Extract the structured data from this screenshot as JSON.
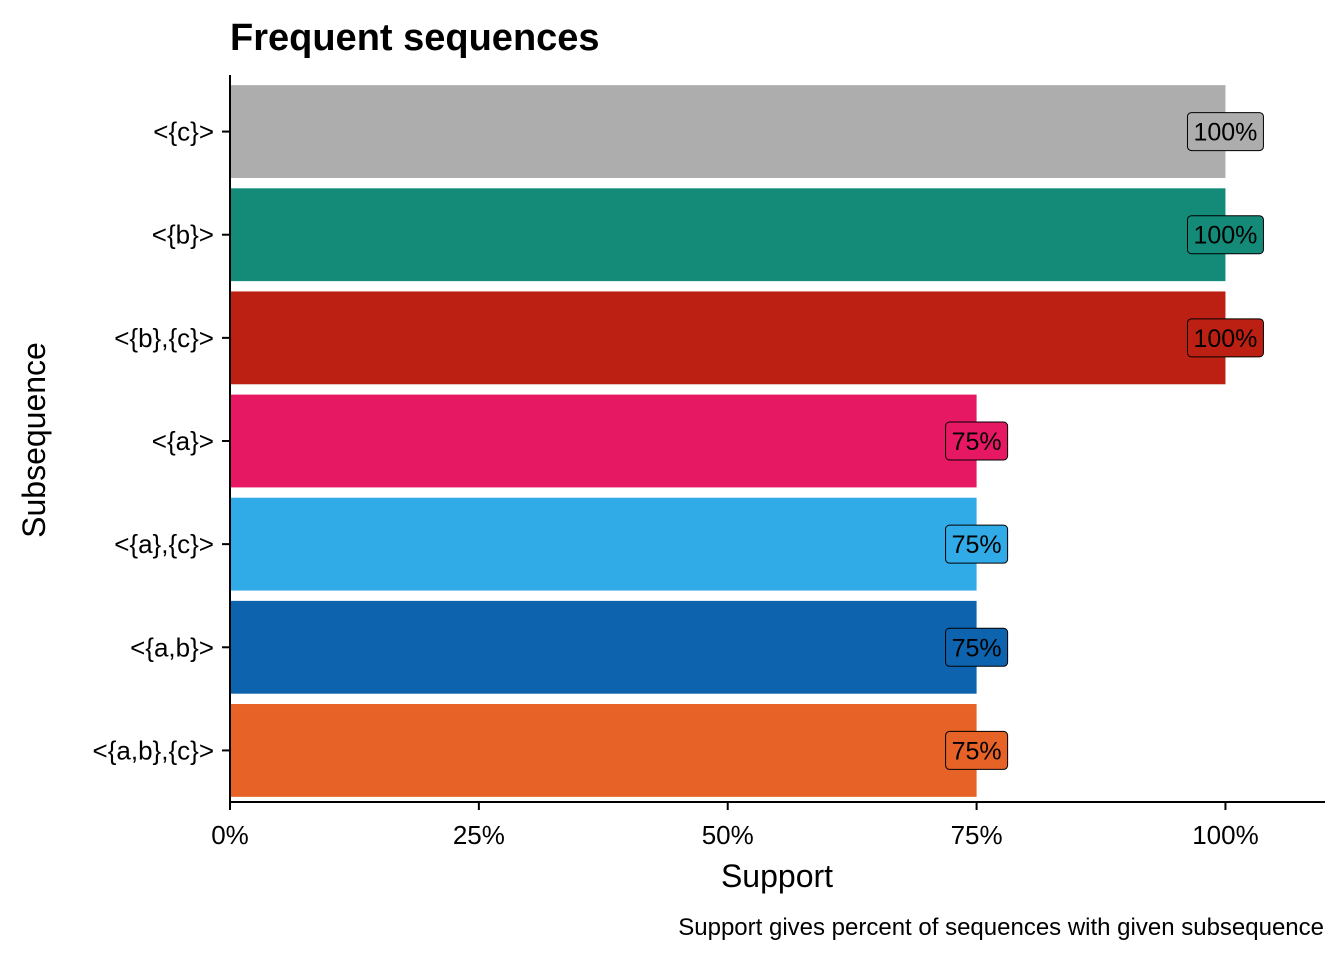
{
  "chart_data": {
    "type": "bar",
    "orientation": "horizontal",
    "title": "Frequent sequences",
    "xlabel": "Support",
    "ylabel": "Subsequence",
    "caption": "Support gives percent of sequences with given subsequence",
    "xlim": [
      0,
      1.1
    ],
    "x_ticks": [
      0,
      0.25,
      0.5,
      0.75,
      1.0
    ],
    "x_tick_labels": [
      "0%",
      "25%",
      "50%",
      "75%",
      "100%"
    ],
    "grid": false,
    "legend": "none",
    "categories": [
      "<{c}>",
      "<{b}>",
      "<{b},{c}>",
      "<{a}>",
      "<{a},{c}>",
      "<{a,b}>",
      "<{a,b},{c}>"
    ],
    "values": [
      1.0,
      1.0,
      1.0,
      0.75,
      0.75,
      0.75,
      0.75
    ],
    "value_labels": [
      "100%",
      "100%",
      "100%",
      "75%",
      "75%",
      "75%",
      "75%"
    ],
    "colors": [
      "#adadad",
      "#138b78",
      "#bc2012",
      "#e71863",
      "#30abe7",
      "#0d63ae",
      "#e66227"
    ]
  }
}
